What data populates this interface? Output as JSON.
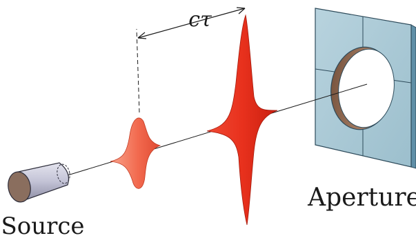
{
  "labels": {
    "delay": "cτ",
    "aperture": "Aperture",
    "source": "Source"
  },
  "components": {
    "source": "cylindrical source",
    "pulses": [
      "small pulse",
      "large pulse"
    ],
    "aperture": "square plate with circular aperture"
  },
  "colors": {
    "pulse_small": "#f26a4f",
    "pulse_large": "#e8311d",
    "plate_face": "#a9c8d4",
    "plate_edge": "#5f8fa7",
    "source_body": "#c9c9d8",
    "source_end": "#8a6e5e"
  }
}
